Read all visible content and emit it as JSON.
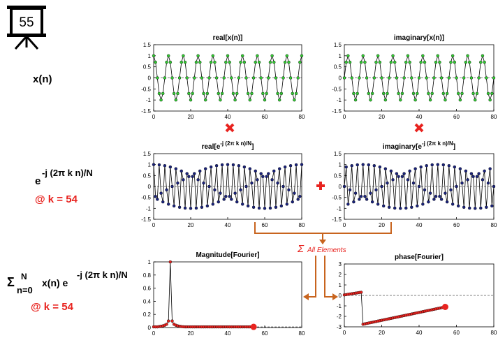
{
  "slide_number": "55",
  "labels": {
    "xn": "x(n)",
    "exp_base": "e",
    "exp_sup": "-j (2π k n)/N",
    "at_k_1": "@ k = 54",
    "sum_sigma": "Σ",
    "sum_sup": "N",
    "sum_sub": "n=0",
    "sum_body": "x(n) e",
    "sum_sup2": "-j (2π k n)/N",
    "at_k_2": "@ k = 54",
    "sum_all": "All Elements"
  },
  "colors": {
    "green": "#33cc33",
    "blue": "#1a237e",
    "red": "#e8231f",
    "orange": "#c8641e"
  },
  "chart_data": [
    {
      "id": "real-xn",
      "type": "line",
      "title": "real[x(n)]",
      "xlim": [
        0,
        80
      ],
      "ylim": [
        -1.5,
        1.5
      ],
      "xticks": [
        "0",
        "20",
        "40",
        "60",
        "80"
      ],
      "yticks": [
        "1.5",
        "1",
        "0.5",
        "0",
        "-0.5",
        "-1",
        "-1.5"
      ],
      "series": [
        {
          "color": "#33cc33",
          "formula": "cos(2π·10n/80)",
          "n": 81
        }
      ]
    },
    {
      "id": "imag-xn",
      "type": "line",
      "title": "imaginary[x(n)]",
      "xlim": [
        0,
        80
      ],
      "ylim": [
        -1.5,
        1.5
      ],
      "xticks": [
        "0",
        "20",
        "40",
        "60",
        "80"
      ],
      "yticks": [
        "1.5",
        "1",
        "0.5",
        "0",
        "-0.5",
        "-1",
        "-1.5"
      ],
      "series": [
        {
          "color": "#33cc33",
          "formula": "sin(2π·10n/80)",
          "n": 81
        }
      ]
    },
    {
      "id": "real-exp",
      "type": "line",
      "title_main": "real[e",
      "title_sup": "-j (2π k n)/N",
      "title_end": "]",
      "xlim": [
        0,
        80
      ],
      "ylim": [
        -1.5,
        1.5
      ],
      "xticks": [
        "0",
        "20",
        "40",
        "60",
        "80"
      ],
      "yticks": [
        "1.5",
        "1",
        "0.5",
        "0",
        "-0.5",
        "-1",
        "-1.5"
      ],
      "series": [
        {
          "color": "#1a237e",
          "formula": "cos(2π·54n/80)",
          "n": 81
        }
      ]
    },
    {
      "id": "imag-exp",
      "type": "line",
      "title_main": "imaginary[e",
      "title_sup": "-j (2π k n)/N",
      "title_end": "]",
      "xlim": [
        0,
        80
      ],
      "ylim": [
        -1.5,
        1.5
      ],
      "xticks": [
        "0",
        "20",
        "40",
        "60",
        "80"
      ],
      "yticks": [
        "1.5",
        "1",
        "0.5",
        "0",
        "-0.5",
        "-1",
        "-1.5"
      ],
      "series": [
        {
          "color": "#1a237e",
          "formula": "-sin(2π·54n/80)",
          "n": 81
        }
      ]
    },
    {
      "id": "mag",
      "type": "line",
      "title": "Magnitude[Fourier]",
      "xlim": [
        0,
        80
      ],
      "ylim": [
        0,
        1
      ],
      "xticks": [
        "0",
        "20",
        "40",
        "60",
        "80"
      ],
      "yticks": [
        "1",
        "0.8",
        "0.6",
        "0.4",
        "0.2",
        "0"
      ],
      "series": [
        {
          "color": "#e8231f",
          "x": [
            0,
            1,
            2,
            3,
            4,
            5,
            6,
            7,
            8,
            9,
            10,
            11,
            12,
            13,
            14,
            15,
            16,
            17,
            18,
            19,
            20,
            21,
            22,
            23,
            24,
            25,
            26,
            27,
            28,
            29,
            30,
            31,
            32,
            33,
            34,
            35,
            36,
            37,
            38,
            39,
            40,
            41,
            42,
            43,
            44,
            45,
            46,
            47,
            48,
            49,
            50,
            51,
            52,
            53,
            54
          ],
          "y": [
            0.01,
            0.01,
            0.01,
            0.015,
            0.02,
            0.025,
            0.035,
            0.05,
            0.1,
            1.0,
            0.1,
            0.05,
            0.035,
            0.025,
            0.02,
            0.015,
            0.012,
            0.01,
            0.01,
            0.01,
            0.01,
            0.01,
            0.01,
            0.01,
            0.01,
            0.01,
            0.01,
            0.01,
            0.01,
            0.01,
            0.01,
            0.01,
            0.01,
            0.01,
            0.01,
            0.01,
            0.01,
            0.01,
            0.01,
            0.01,
            0.01,
            0.01,
            0.01,
            0.01,
            0.01,
            0.01,
            0.01,
            0.01,
            0.01,
            0.01,
            0.01,
            0.01,
            0.01,
            0.01,
            0.01
          ]
        }
      ],
      "endpoint": [
        54,
        0.01
      ]
    },
    {
      "id": "phase",
      "type": "line",
      "title": "phase[Fourier]",
      "xlim": [
        0,
        80
      ],
      "ylim": [
        -3,
        3
      ],
      "xticks": [
        "0",
        "20",
        "40",
        "60",
        "80"
      ],
      "yticks": [
        "3",
        "2",
        "1",
        "0",
        "-1",
        "-2",
        "-3"
      ],
      "series": [
        {
          "color": "#e8231f",
          "segments": [
            {
              "x0": 0,
              "y0": 0.05,
              "x1": 9,
              "y1": 0.3
            },
            {
              "x0": 10,
              "y0": -2.75,
              "x1": 54,
              "y1": -1.1
            }
          ]
        }
      ],
      "endpoint": [
        54,
        -1.1
      ]
    }
  ]
}
